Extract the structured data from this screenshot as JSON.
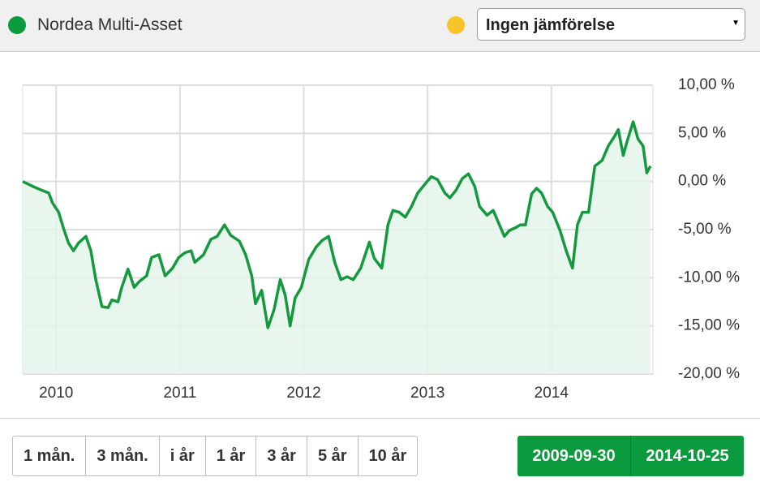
{
  "chart_data": {
    "type": "line",
    "x": [
      2009.73,
      2009.81,
      2009.88,
      2009.94,
      2009.97,
      2010.02,
      2010.06,
      2010.1,
      2010.14,
      2010.18,
      2010.24,
      2010.28,
      2010.32,
      2010.37,
      2010.42,
      2010.45,
      2010.5,
      2010.53,
      2010.58,
      2010.63,
      2010.67,
      2010.73,
      2010.77,
      2010.83,
      2010.88,
      2010.94,
      2010.99,
      2011.04,
      2011.09,
      2011.12,
      2011.19,
      2011.25,
      2011.3,
      2011.36,
      2011.41,
      2011.48,
      2011.53,
      2011.58,
      2011.61,
      2011.66,
      2011.71,
      2011.76,
      2011.81,
      2011.85,
      2011.89,
      2011.93,
      2011.98,
      2012.04,
      2012.1,
      2012.15,
      2012.2,
      2012.25,
      2012.3,
      2012.35,
      2012.4,
      2012.46,
      2012.53,
      2012.57,
      2012.63,
      2012.68,
      2012.72,
      2012.77,
      2012.82,
      2012.87,
      2012.92,
      2012.99,
      2013.03,
      2013.08,
      2013.14,
      2013.18,
      2013.23,
      2013.28,
      2013.33,
      2013.38,
      2013.42,
      2013.48,
      2013.53,
      2013.58,
      2013.62,
      2013.66,
      2013.71,
      2013.75,
      2013.79,
      2013.84,
      2013.88,
      2013.92,
      2013.97,
      2014.01,
      2014.07,
      2014.12,
      2014.17,
      2014.21,
      2014.25,
      2014.3,
      2014.35,
      2014.41,
      2014.46,
      2014.51,
      2014.54,
      2014.58,
      2014.61,
      2014.66,
      2014.7,
      2014.74,
      2014.77,
      2014.8
    ],
    "series": [
      {
        "name": "Nordea Multi-Asset",
        "color": "#14993f",
        "values": [
          0,
          -0.5,
          -0.9,
          -1.2,
          -2.2,
          -3.2,
          -4.9,
          -6.4,
          -7.2,
          -6.4,
          -5.7,
          -7.2,
          -10.2,
          -13.0,
          -13.1,
          -12.3,
          -12.5,
          -11.0,
          -9.1,
          -11.0,
          -10.4,
          -9.8,
          -7.9,
          -7.6,
          -9.8,
          -9.0,
          -7.9,
          -7.4,
          -7.2,
          -8.4,
          -7.6,
          -6.0,
          -5.7,
          -4.5,
          -5.6,
          -6.2,
          -7.6,
          -9.8,
          -12.7,
          -11.3,
          -15.2,
          -13.3,
          -10.2,
          -11.8,
          -15.0,
          -12.1,
          -11.0,
          -8.1,
          -6.8,
          -6.1,
          -5.7,
          -8.4,
          -10.2,
          -9.9,
          -10.2,
          -9.0,
          -6.3,
          -8.0,
          -9.0,
          -4.5,
          -3.0,
          -3.2,
          -3.7,
          -2.6,
          -1.2,
          -0.1,
          0.5,
          0.2,
          -1.2,
          -1.7,
          -0.9,
          0.3,
          0.8,
          -0.5,
          -2.6,
          -3.5,
          -3.0,
          -4.5,
          -5.7,
          -5.1,
          -4.8,
          -4.5,
          -4.5,
          -1.3,
          -0.7,
          -1.2,
          -2.6,
          -3.2,
          -5.1,
          -7.2,
          -9.0,
          -4.5,
          -3.2,
          -3.2,
          1.6,
          2.2,
          3.7,
          4.7,
          5.4,
          2.7,
          4.1,
          6.2,
          4.4,
          3.7,
          0.9,
          1.6
        ]
      }
    ],
    "xlim": [
      2009.73,
      2014.82
    ],
    "xticks": [
      2010,
      2011,
      2012,
      2013,
      2014
    ],
    "ylim": [
      -20,
      10
    ],
    "yticks": [
      {
        "value": -20,
        "label": "-20,00 %"
      },
      {
        "value": -15,
        "label": "-15,00 %"
      },
      {
        "value": -10,
        "label": "-10,00 %"
      },
      {
        "value": -5,
        "label": "-5,00 %"
      },
      {
        "value": 0,
        "label": "0,00 %"
      },
      {
        "value": 5,
        "label": "5,00 %"
      },
      {
        "value": 10,
        "label": "10,00 %"
      }
    ],
    "grid": true,
    "area_color": "#e5f4ea"
  },
  "controls": {
    "compare": "Ingen jämförelse",
    "ranges": [
      "1 mån.",
      "3 mån.",
      "i år",
      "1 år",
      "3 år",
      "5 år",
      "10 år"
    ],
    "date_from": "2009-09-30",
    "date_to": "2014-10-25"
  }
}
